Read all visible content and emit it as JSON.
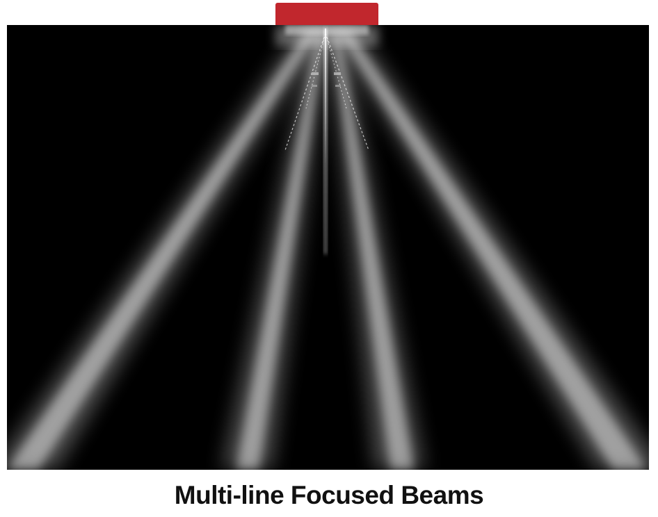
{
  "caption": "Multi-line Focused Beams",
  "colors": {
    "transducer": "#c1272d",
    "background": "#000000",
    "beam": "#ffffff"
  },
  "beam_count": 4
}
